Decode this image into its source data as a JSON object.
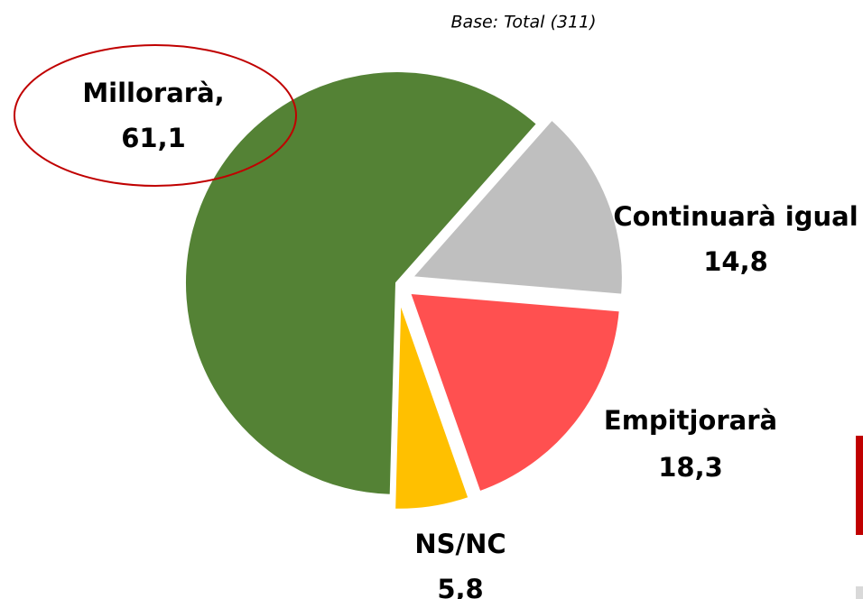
{
  "chart_data": {
    "type": "pie",
    "subtitle": "Base: Total (311)",
    "categories": [
      "Millorarà,",
      "Continuarà igual",
      "Empitjorarà",
      "NS/NC"
    ],
    "values": [
      61.1,
      14.8,
      18.3,
      5.8
    ],
    "value_labels": [
      "61,1",
      "14,8",
      "18,3",
      "5,8"
    ],
    "colors": [
      "#548235",
      "#bfbfbf",
      "#ff5050",
      "#ffc000"
    ]
  }
}
